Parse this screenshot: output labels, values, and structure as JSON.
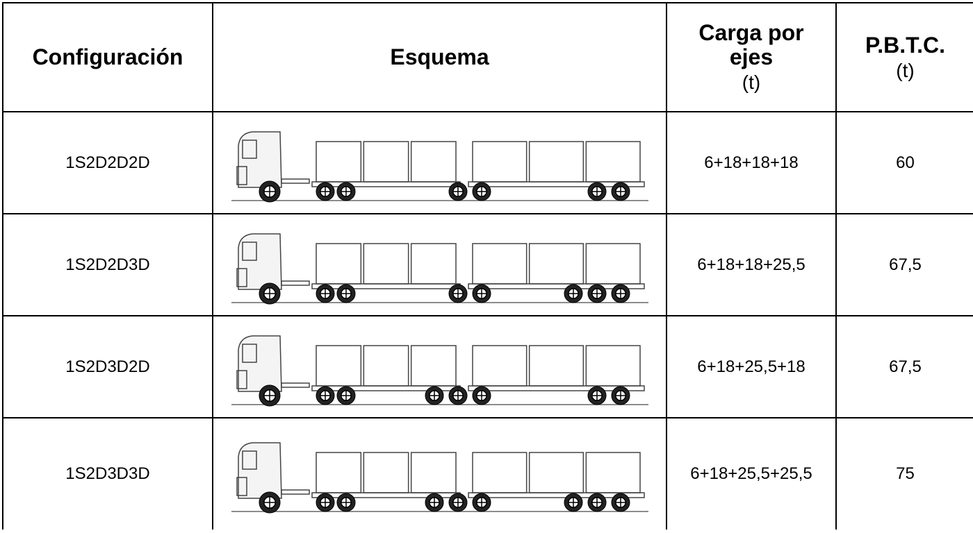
{
  "table": {
    "header": [
      {
        "label": "Configuración"
      },
      {
        "label": "Esquema"
      },
      {
        "label": "Carga por ejes",
        "unit": "(t)"
      },
      {
        "label": "P.B.T.C.",
        "unit": "(t)"
      }
    ],
    "rows": [
      {
        "config": "1S2D2D2D",
        "load": "6+18+18+18",
        "pbtc": "60"
      },
      {
        "config": "1S2D2D3D",
        "load": "6+18+18+25,5",
        "pbtc": "67,5"
      },
      {
        "config": "1S2D3D2D",
        "load": "6+18+25,5+18",
        "pbtc": "67,5"
      },
      {
        "config": "1S2D3D3D",
        "load": "6+18+25,5+25,5",
        "pbtc": "75"
      }
    ]
  }
}
